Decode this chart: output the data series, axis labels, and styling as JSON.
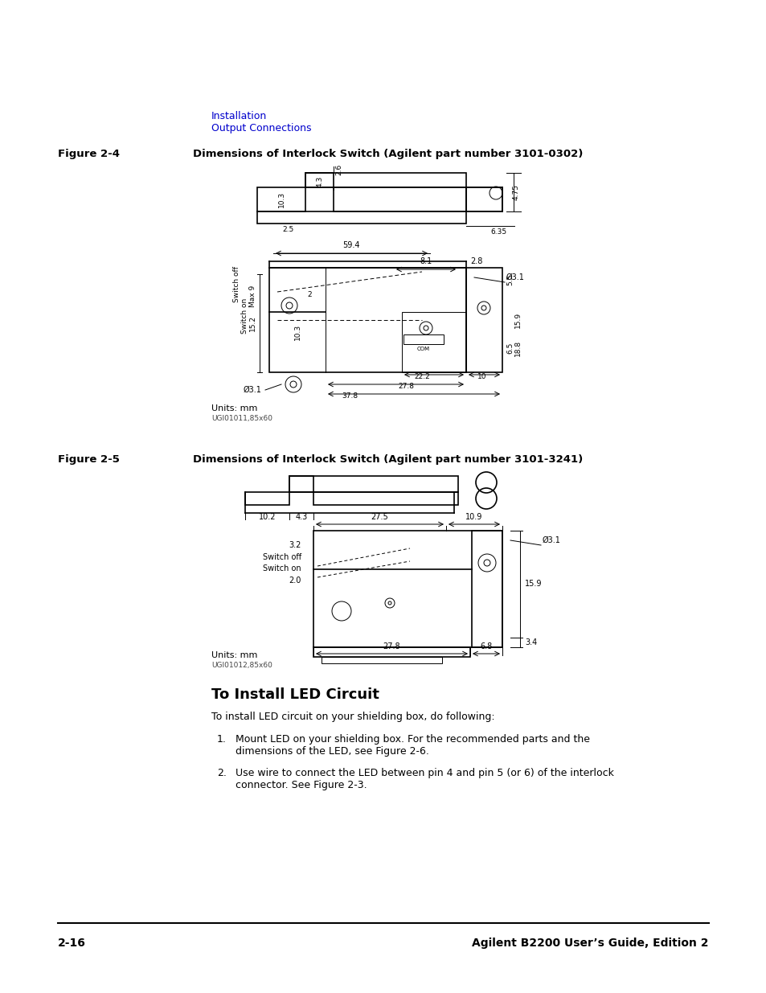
{
  "bg_color": "#ffffff",
  "breadcrumb_line1": "Installation",
  "breadcrumb_line2": "Output Connections",
  "breadcrumb_color": "#0000cc",
  "fig2_4_label": "Figure 2-4",
  "fig2_4_title": "Dimensions of Interlock Switch (Agilent part number 3101-0302)",
  "fig2_5_label": "Figure 2-5",
  "fig2_5_title": "Dimensions of Interlock Switch (Agilent part number 3101-3241)",
  "section_title": "To Install LED Circuit",
  "para1": "To install LED circuit on your shielding box, do following:",
  "item1": "Mount LED on your shielding box. For the recommended parts and the\ndimensions of the LED, see Figure 2-6.",
  "item2": "Use wire to connect the LED between pin 4 and pin 5 (or 6) of the interlock\nconnector. See Figure 2-3.",
  "footer_left": "2-16",
  "footer_right": "Agilent B2200 User’s Guide, Edition 2",
  "units_mm": "Units: mm",
  "fig1_caption": "UGI01011,85x60",
  "fig2_caption": "UGI01012,85x60"
}
